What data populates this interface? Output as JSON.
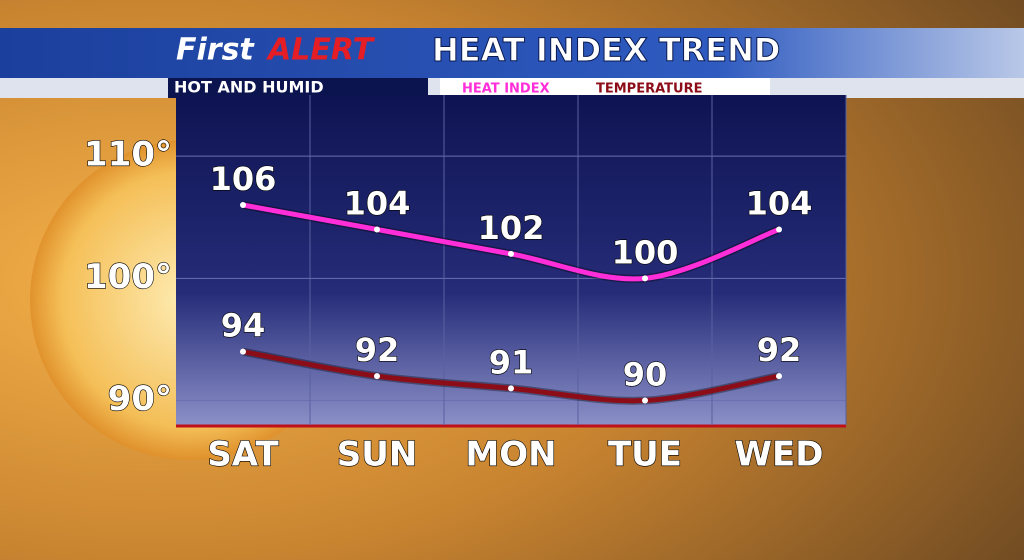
{
  "logo": {
    "first": "First",
    "alert": "ALERT"
  },
  "chart_data": {
    "type": "line",
    "title": "HEAT INDEX TREND",
    "subtitle": "HOT AND HUMID",
    "categories": [
      "SAT",
      "SUN",
      "MON",
      "TUE",
      "WED"
    ],
    "series": [
      {
        "name": "HEAT INDEX",
        "color": "#ff2ed8",
        "values": [
          106,
          104,
          102,
          100,
          104
        ]
      },
      {
        "name": "TEMPERATURE",
        "color": "#8c0c18",
        "values": [
          94,
          92,
          91,
          90,
          92
        ]
      }
    ],
    "ylim": [
      88,
      115
    ],
    "yticks": [
      {
        "value": 90,
        "label": "90°"
      },
      {
        "value": 100,
        "label": "100°"
      },
      {
        "value": 110,
        "label": "110°"
      }
    ],
    "grid": true
  }
}
